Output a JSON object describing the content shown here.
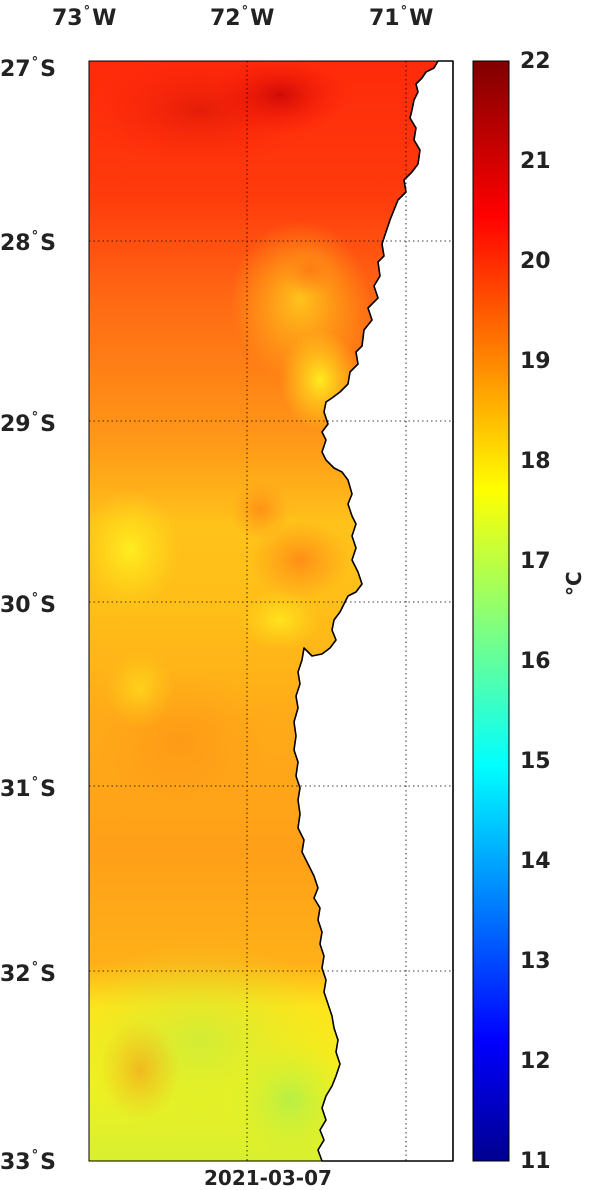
{
  "map": {
    "date_label": "2021-03-07",
    "lon_ticks": [
      {
        "deg": "73",
        "hemi": "W"
      },
      {
        "deg": "72",
        "hemi": "W"
      },
      {
        "deg": "71",
        "hemi": "W"
      }
    ],
    "lat_ticks": [
      {
        "deg": "27",
        "hemi": "S"
      },
      {
        "deg": "28",
        "hemi": "S"
      },
      {
        "deg": "29",
        "hemi": "S"
      },
      {
        "deg": "30",
        "hemi": "S"
      },
      {
        "deg": "31",
        "hemi": "S"
      },
      {
        "deg": "32",
        "hemi": "S"
      },
      {
        "deg": "33",
        "hemi": "S"
      }
    ],
    "variable_units": "°C",
    "land_color": "#ffffff",
    "grid": true
  },
  "colorbar": {
    "ticks": [
      "22",
      "21",
      "20",
      "19",
      "18",
      "17",
      "16",
      "15",
      "14",
      "13",
      "12",
      "11"
    ],
    "min": 11,
    "max": 22,
    "colormap": "jet"
  }
}
